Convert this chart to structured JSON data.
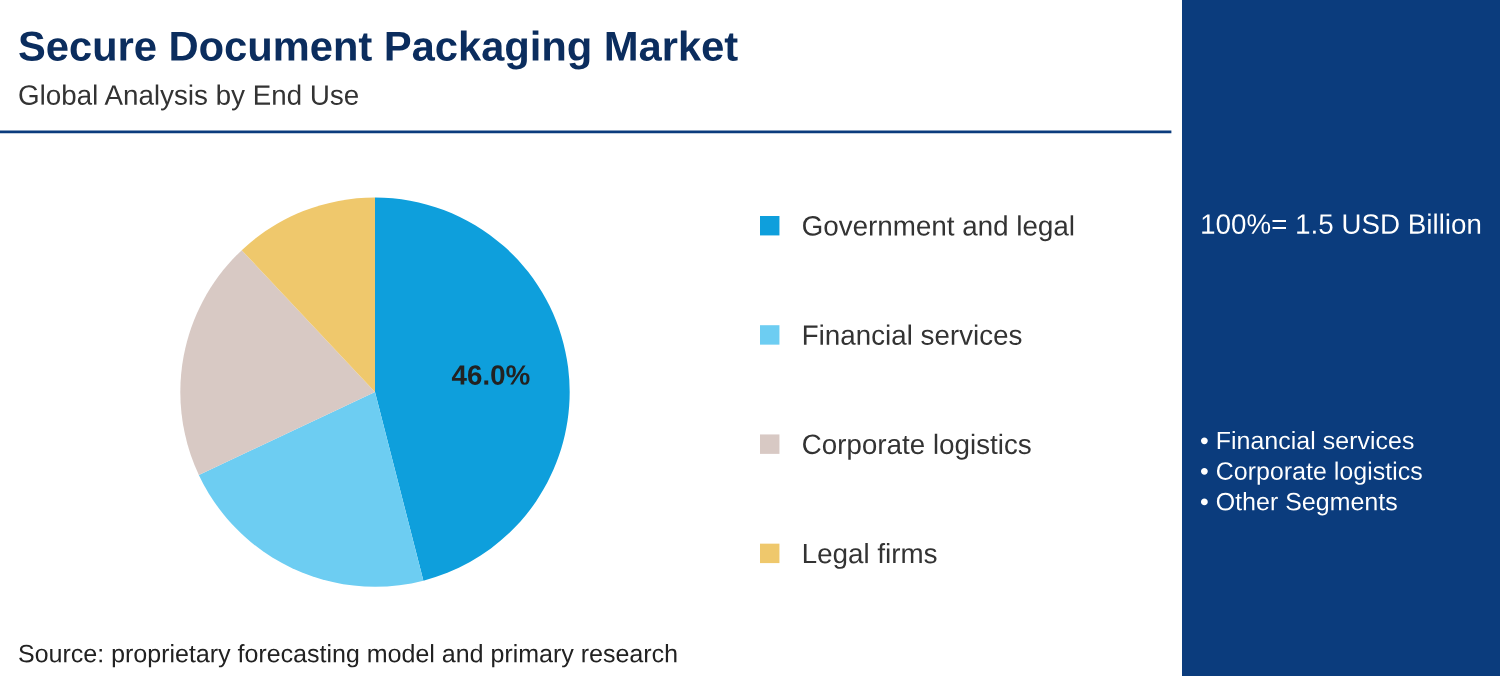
{
  "chart_data": {
    "type": "pie",
    "title": "Secure Document Packaging Market",
    "subtitle": "Global Analysis by End Use",
    "categories": [
      "Government and legal",
      "Financial services",
      "Corporate logistics",
      "Legal firms"
    ],
    "values": [
      46,
      22,
      20,
      12
    ],
    "colors": [
      "#0e9fdc",
      "#6dcdf2",
      "#d8c9c4",
      "#efc86c"
    ],
    "value_labels": [
      "46.0%",
      null,
      null,
      null
    ],
    "legend": "right",
    "annotations": [
      "100%= 1.5 USD Billion",
      "• Financial services\n• Corporate logistics\n• Other Segments",
      "Source: proprietary forecasting model and primary research"
    ]
  }
}
